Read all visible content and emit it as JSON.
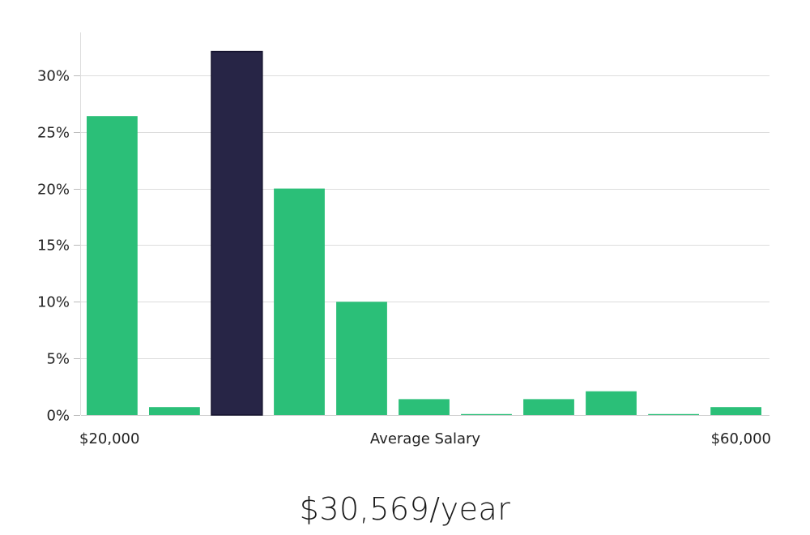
{
  "chart_data": {
    "type": "bar",
    "xlabel": "Average Salary",
    "x_range_labels": [
      "$20,000",
      "$60,000"
    ],
    "yticks": [
      "0%",
      "5%",
      "10%",
      "15%",
      "20%",
      "25%",
      "30%"
    ],
    "ylim": [
      0,
      34
    ],
    "grid": true,
    "values": [
      26.4,
      0.7,
      32.1,
      20.0,
      10.0,
      1.4,
      0.05,
      1.4,
      2.1,
      0.05,
      0.7
    ],
    "highlight_index": 2,
    "colors": {
      "bar": "#2bbf78",
      "highlight": "#272546",
      "highlight_stroke": "#15132e"
    }
  },
  "salary_text": "$30,569/year"
}
